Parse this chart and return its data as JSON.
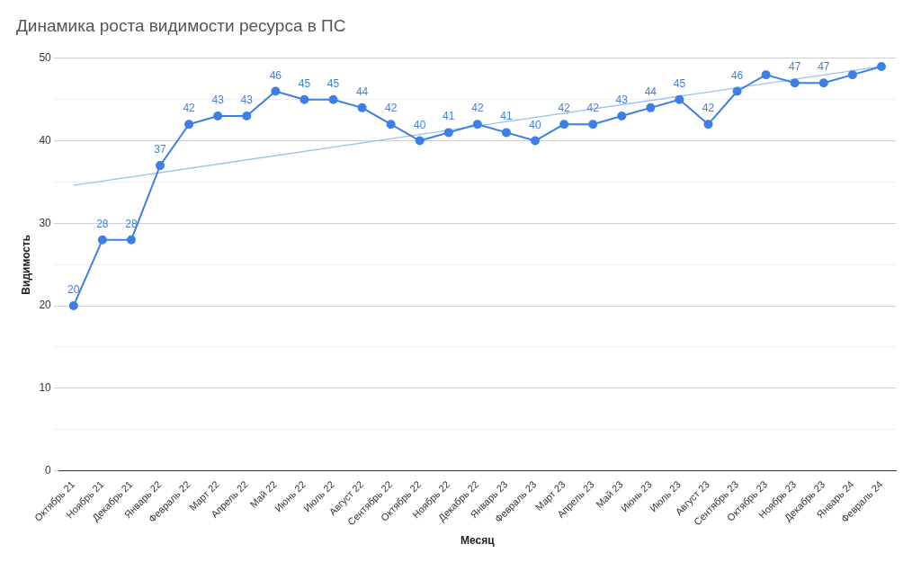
{
  "chart_data": {
    "type": "line",
    "title": "Динамика роста видимости ресурса в ПС",
    "xlabel": "Месяц",
    "ylabel": "Видимость",
    "categories": [
      "Октябрь 21",
      "Ноябрь 21",
      "Декабрь 21",
      "Январь 22",
      "Февраль 22",
      "Март 22",
      "Апрель 22",
      "Май 22",
      "Июнь 22",
      "Июль 22",
      "Август 22",
      "Сентябрь 22",
      "Октябрь 22",
      "Ноябрь 22",
      "Декабрь 22",
      "Январь 23",
      "Февраль 23",
      "Март 23",
      "Апрель 23",
      "Май 23",
      "Июнь 23",
      "Июль 23",
      "Август 23",
      "Сентябрь 23",
      "Октябрь 23",
      "Ноябрь 23",
      "Декабрь 23",
      "Январь 24",
      "Февраль 24"
    ],
    "series": [
      {
        "color": "#3d7fe6",
        "marker": "circle",
        "values": [
          20,
          28,
          28,
          37,
          42,
          43,
          43,
          46,
          45,
          45,
          44,
          42,
          40,
          41,
          42,
          41,
          40,
          42,
          42,
          43,
          44,
          45,
          42,
          46,
          48,
          47,
          47,
          48,
          49
        ],
        "value_labels": [
          "20",
          "28",
          "28",
          "37",
          "42",
          "43",
          "43",
          "46",
          "45",
          "45",
          "44",
          "42",
          "40",
          "41",
          "42",
          "41",
          "40",
          "42",
          "42",
          "43",
          "44",
          "45",
          "42",
          "46",
          null,
          "47",
          "47",
          null,
          null
        ]
      },
      {
        "type": "line",
        "color": "#9fc0f2",
        "marker": "none",
        "x": [
          "Октябрь 21",
          "Февраль 24"
        ],
        "values": [
          34.6,
          49
        ]
      }
    ],
    "ylim": [
      0,
      50
    ],
    "yticks": [
      0,
      {
        "value": 5,
        "label": null
      },
      10,
      {
        "value": 15,
        "label": null
      },
      20,
      {
        "value": 25,
        "label": null
      },
      30,
      {
        "value": 35,
        "label": null
      },
      40,
      {
        "value": 45,
        "label": null
      },
      50
    ],
    "grid": "y",
    "legend": false,
    "line_style": "solid"
  }
}
